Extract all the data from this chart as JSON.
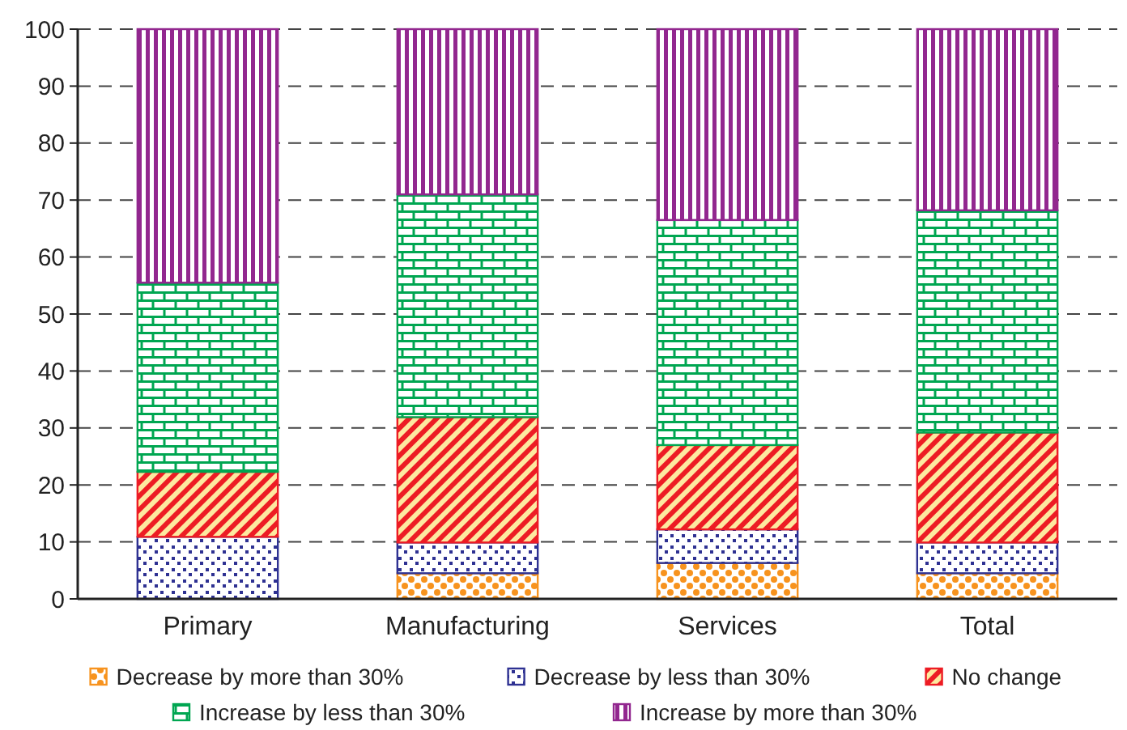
{
  "chart_data": {
    "type": "bar",
    "stacked": true,
    "categories": [
      "Primary",
      "Manufacturing",
      "Services",
      "Total"
    ],
    "series": [
      {
        "name": "Decrease by more than 30%",
        "color": "#f7931e",
        "values": [
          0,
          4.5,
          6.3,
          4.5
        ]
      },
      {
        "name": "Decrease by less than 30%",
        "color": "#2e3192",
        "values": [
          10.9,
          5.4,
          5.9,
          5.4
        ]
      },
      {
        "name": "No change",
        "color": "#ed1c24",
        "values": [
          11.4,
          22,
          14.8,
          19.3
        ]
      },
      {
        "name": "Increase by less than 30%",
        "color": "#00a651",
        "values": [
          33.2,
          39.1,
          39.5,
          39
        ]
      },
      {
        "name": "Increase by more than 30%",
        "color": "#92278f",
        "values": [
          44.5,
          29,
          33.5,
          31.8
        ]
      }
    ],
    "ylim": [
      0,
      100
    ],
    "yticks": [
      0,
      10,
      20,
      30,
      40,
      50,
      60,
      70,
      80,
      90,
      100
    ],
    "grid": "y",
    "legend": "bottom"
  }
}
